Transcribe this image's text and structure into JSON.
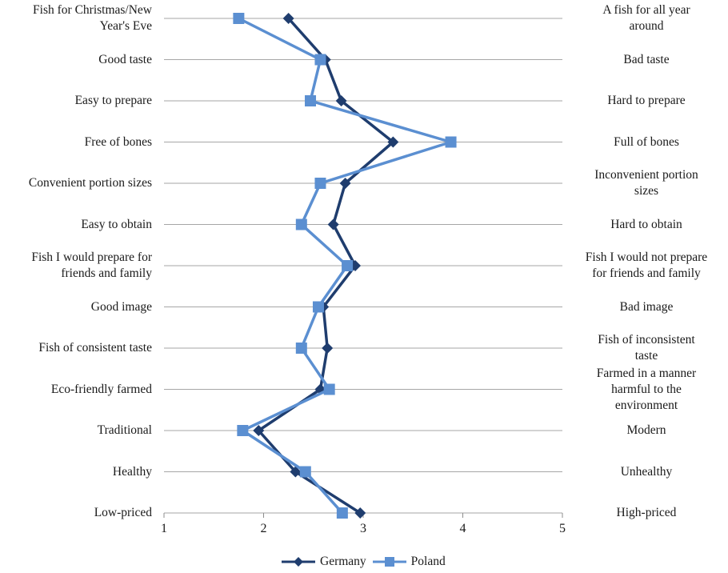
{
  "chart_data": {
    "type": "line",
    "orientation": "horizontal-profile",
    "left_labels": [
      "Fish for Christmas/New Year's Eve",
      "Good taste",
      "Easy to prepare",
      "Free of bones",
      "Convenient portion sizes",
      "Easy to obtain",
      "Fish I would prepare for friends and family",
      "Good image",
      "Fish of consistent taste",
      "Eco-friendly farmed",
      "Traditional",
      "Healthy",
      "Low-priced"
    ],
    "right_labels": [
      "A fish for all year around",
      "Bad taste",
      "Hard to prepare",
      "Full of bones",
      "Inconvenient portion sizes",
      "Hard to obtain",
      "Fish I would not prepare for friends and family",
      "Bad image",
      "Fish of inconsistent taste",
      "Farmed in a manner harmful to the environment",
      "Modern",
      "Unhealthy",
      "High-priced"
    ],
    "series": [
      {
        "name": "Germany",
        "color": "#1f3d6e",
        "marker": "diamond",
        "values": [
          2.25,
          2.62,
          2.78,
          3.3,
          2.82,
          2.7,
          2.92,
          2.6,
          2.64,
          2.57,
          1.95,
          2.32,
          2.97
        ]
      },
      {
        "name": "Poland",
        "color": "#5b8fd1",
        "marker": "square",
        "values": [
          1.75,
          2.57,
          2.47,
          3.88,
          2.57,
          2.38,
          2.84,
          2.55,
          2.38,
          2.66,
          1.79,
          2.42,
          2.79
        ]
      }
    ],
    "xlim": [
      1,
      5
    ],
    "xticks": [
      "1",
      "2",
      "3",
      "4",
      "5"
    ],
    "grid": true,
    "legend": "bottom"
  }
}
